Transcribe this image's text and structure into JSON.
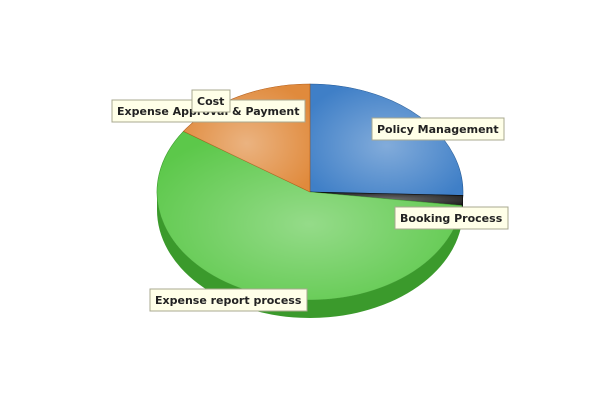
{
  "chart_data": {
    "type": "pie",
    "style": "3d",
    "title": "",
    "slices": [
      {
        "label": "Policy Management",
        "value": 25.5,
        "color": "#3f7fc7",
        "dark": "#245a96"
      },
      {
        "label": "Booking Process",
        "value": 1.5,
        "color": "#222222",
        "dark": "#000000"
      },
      {
        "label": "Expense report process",
        "value": 57.5,
        "color": "#5cc84a",
        "dark": "#3b9a2c"
      },
      {
        "label": "Expense Approval & Payment",
        "value": 15.5,
        "color": "#e08a3c",
        "dark": "#b25c18"
      },
      {
        "label": "Cost",
        "value": 0,
        "color": "#cccccc",
        "dark": "#999999"
      }
    ],
    "legend": "none"
  }
}
